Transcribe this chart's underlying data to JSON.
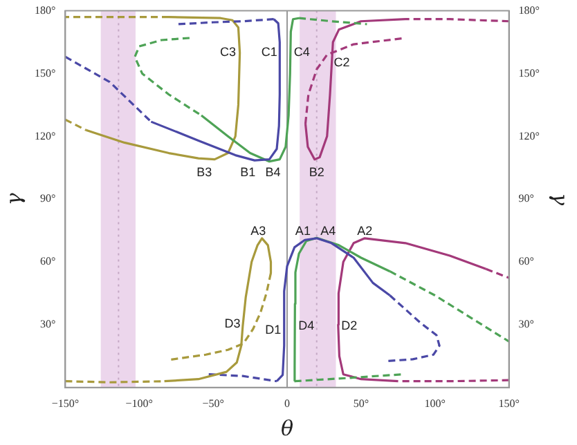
{
  "chart_data": {
    "type": "line",
    "xlabel": "θ",
    "ylabel": "γ",
    "y2label": "γ",
    "xlim": [
      -150,
      150
    ],
    "xticks": [
      {
        "value": -150,
        "label": "−150°"
      },
      {
        "value": -100,
        "label": "−100°"
      },
      {
        "value": -50,
        "label": "−50°"
      },
      {
        "value": 0,
        "label": "0"
      },
      {
        "value": 50,
        "label": "50°"
      },
      {
        "value": 100,
        "label": "100°"
      },
      {
        "value": 150,
        "label": "150°"
      }
    ],
    "ylim": [
      0,
      180
    ],
    "yticks": [
      {
        "value": 30,
        "label": "30°"
      },
      {
        "value": 60,
        "label": "60°"
      },
      {
        "value": 90,
        "label": "90°"
      },
      {
        "value": 120,
        "label": "120°"
      },
      {
        "value": 150,
        "label": "150°"
      },
      {
        "value": 180,
        "label": "180°"
      }
    ],
    "y2lim": [
      0,
      180
    ],
    "y2ticks": [
      {
        "value": 30,
        "label": "30°"
      },
      {
        "value": 60,
        "label": "60°"
      },
      {
        "value": 90,
        "label": "90°"
      },
      {
        "value": 120,
        "label": "120°"
      },
      {
        "value": 150,
        "label": "150°"
      },
      {
        "value": 180,
        "label": "180°"
      }
    ],
    "legend": false,
    "bands": [
      {
        "axis": "x",
        "from": -126,
        "to": -102.5,
        "color": "#ecd6ec"
      },
      {
        "axis": "x",
        "from": 8.5,
        "to": 33,
        "color": "#ecd6ec"
      }
    ],
    "ref_lines": [
      {
        "axis": "x",
        "value": 0,
        "color": "#999999",
        "line_style": "solid"
      },
      {
        "axis": "x",
        "value": -114,
        "color": "#c4a8c4",
        "line_style": "dotted"
      },
      {
        "axis": "x",
        "value": 20,
        "color": "#c4a8c4",
        "line_style": "dotted"
      }
    ],
    "series": [
      {
        "color": "#4a48a6",
        "line_style": "dashed",
        "x": [
          -150,
          -120,
          -92
        ],
        "values": [
          158,
          146,
          127
        ]
      },
      {
        "color": "#4a48a6",
        "line_style": "solid",
        "x": [
          -92,
          -60,
          -35,
          -22,
          -12,
          -7,
          -5.5,
          -5,
          -5,
          -6,
          -9
        ],
        "values": [
          127,
          118,
          111,
          108.5,
          109,
          114,
          125,
          140,
          165,
          174,
          176
        ]
      },
      {
        "color": "#4a48a6",
        "line_style": "dashed",
        "x": [
          -9,
          -30,
          -50,
          -74
        ],
        "values": [
          176,
          175,
          174.5,
          173.6
        ]
      },
      {
        "color": "#4ea356",
        "line_style": "dashed",
        "x": [
          -66,
          -85,
          -100,
          -103,
          -98,
          -80,
          -58
        ],
        "values": [
          167,
          166,
          163,
          158,
          150,
          140,
          130
        ]
      },
      {
        "color": "#4ea356",
        "line_style": "solid",
        "x": [
          -58,
          -40,
          -25,
          -12,
          -5,
          -1,
          1,
          2,
          2.5,
          4,
          8
        ],
        "values": [
          130,
          120,
          112,
          108,
          109,
          115,
          130,
          150,
          170,
          176,
          176.5
        ]
      },
      {
        "color": "#4ea356",
        "line_style": "dashed",
        "x": [
          8,
          30,
          54
        ],
        "values": [
          176.5,
          175,
          173.6
        ]
      },
      {
        "color": "#a89a3c",
        "line_style": "dashed",
        "x": [
          -150,
          -136
        ],
        "values": [
          128,
          123
        ]
      },
      {
        "color": "#a89a3c",
        "line_style": "solid",
        "x": [
          -136,
          -110,
          -80,
          -60,
          -49,
          -40,
          -35,
          -33,
          -32,
          -33,
          -37,
          -45,
          -80
        ],
        "values": [
          123,
          117,
          112,
          109.5,
          109,
          112,
          120,
          135,
          160,
          172,
          175.5,
          176.5,
          177
        ]
      },
      {
        "color": "#a89a3c",
        "line_style": "dashed",
        "x": [
          -80,
          -120,
          -150
        ],
        "values": [
          177,
          177,
          177
        ]
      },
      {
        "color": "#a3397a",
        "line_style": "dashed",
        "x": [
          150,
          110,
          80
        ],
        "values": [
          175,
          176,
          176
        ]
      },
      {
        "color": "#a3397a",
        "line_style": "solid",
        "x": [
          80,
          50,
          35,
          31,
          29,
          27,
          22,
          18.6,
          14,
          12.4
        ],
        "values": [
          176,
          175,
          171,
          165,
          140,
          120,
          110,
          109,
          115,
          126
        ]
      },
      {
        "color": "#a3397a",
        "line_style": "dashed",
        "x": [
          12.4,
          14.4,
          20,
          27,
          45,
          80
        ],
        "values": [
          126,
          140,
          152,
          159,
          164,
          167
        ]
      },
      {
        "color": "#a89a3c",
        "line_style": "dashed",
        "x": [
          -150,
          -120,
          -83
        ],
        "values": [
          3,
          2.5,
          3
        ]
      },
      {
        "color": "#a89a3c",
        "line_style": "solid",
        "x": [
          -83,
          -60,
          -41,
          -34,
          -31,
          -30,
          -28,
          -24,
          -20,
          -17,
          -13,
          -11,
          -11
        ],
        "values": [
          3,
          4,
          7.5,
          12,
          20,
          29.4,
          43,
          60,
          68,
          71.3,
          68,
          60,
          54.7
        ]
      },
      {
        "color": "#a89a3c",
        "line_style": "dashed",
        "x": [
          -11,
          -14,
          -18,
          -23,
          -29.6,
          -40,
          -55,
          -80
        ],
        "values": [
          54.7,
          45,
          35.8,
          28,
          21,
          18,
          15.7,
          13.2
        ]
      },
      {
        "color": "#4a48a6",
        "line_style": "dashed",
        "x": [
          -53,
          -30,
          -7
        ],
        "values": [
          6.3,
          5.5,
          3
        ]
      },
      {
        "color": "#4a48a6",
        "line_style": "solid",
        "x": [
          -7,
          -3,
          -2,
          -2,
          0,
          5,
          12,
          20,
          30,
          45,
          58,
          69.5
        ],
        "values": [
          3,
          6,
          20,
          46,
          58,
          67,
          70.5,
          71.3,
          69,
          62,
          50,
          44
        ]
      },
      {
        "color": "#4a48a6",
        "line_style": "dashed",
        "x": [
          69.5,
          90,
          101,
          103,
          99,
          85,
          66.7
        ],
        "values": [
          44,
          31,
          25,
          20,
          15.7,
          13.5,
          12.6
        ]
      },
      {
        "color": "#4ea356",
        "line_style": "dashed",
        "x": [
          5,
          40,
          78
        ],
        "values": [
          3,
          4.5,
          6.3
        ]
      },
      {
        "color": "#4ea356",
        "line_style": "solid",
        "x": [
          5,
          5.1,
          5.3,
          5.6,
          8,
          13,
          20,
          35,
          50,
          69.5
        ],
        "values": [
          3,
          10,
          40,
          55,
          64,
          70,
          71.5,
          68,
          62,
          55.5
        ]
      },
      {
        "color": "#4ea356",
        "line_style": "dashed",
        "x": [
          69.5,
          100,
          125,
          150
        ],
        "values": [
          55.5,
          44,
          33,
          22
        ]
      },
      {
        "color": "#a3397a",
        "line_style": "dashed",
        "x": [
          150,
          110,
          75
        ],
        "values": [
          3.5,
          3,
          3
        ]
      },
      {
        "color": "#a3397a",
        "line_style": "solid",
        "x": [
          75,
          50,
          38,
          35.3,
          34.5,
          34.8,
          38,
          45,
          52.5,
          80,
          110,
          134.5
        ],
        "values": [
          3,
          4,
          6.3,
          15,
          30,
          45,
          60,
          69,
          71.3,
          69,
          63,
          56.6
        ]
      },
      {
        "color": "#a3397a",
        "line_style": "dashed",
        "x": [
          134.5,
          150
        ],
        "values": [
          56.6,
          52.4
        ]
      }
    ],
    "annotations": [
      "C3",
      "C1",
      "C4",
      "C2",
      "B3",
      "B1",
      "B4",
      "B2",
      "A3",
      "A1",
      "A4",
      "A2",
      "D3",
      "D1",
      "D4",
      "D2"
    ]
  }
}
